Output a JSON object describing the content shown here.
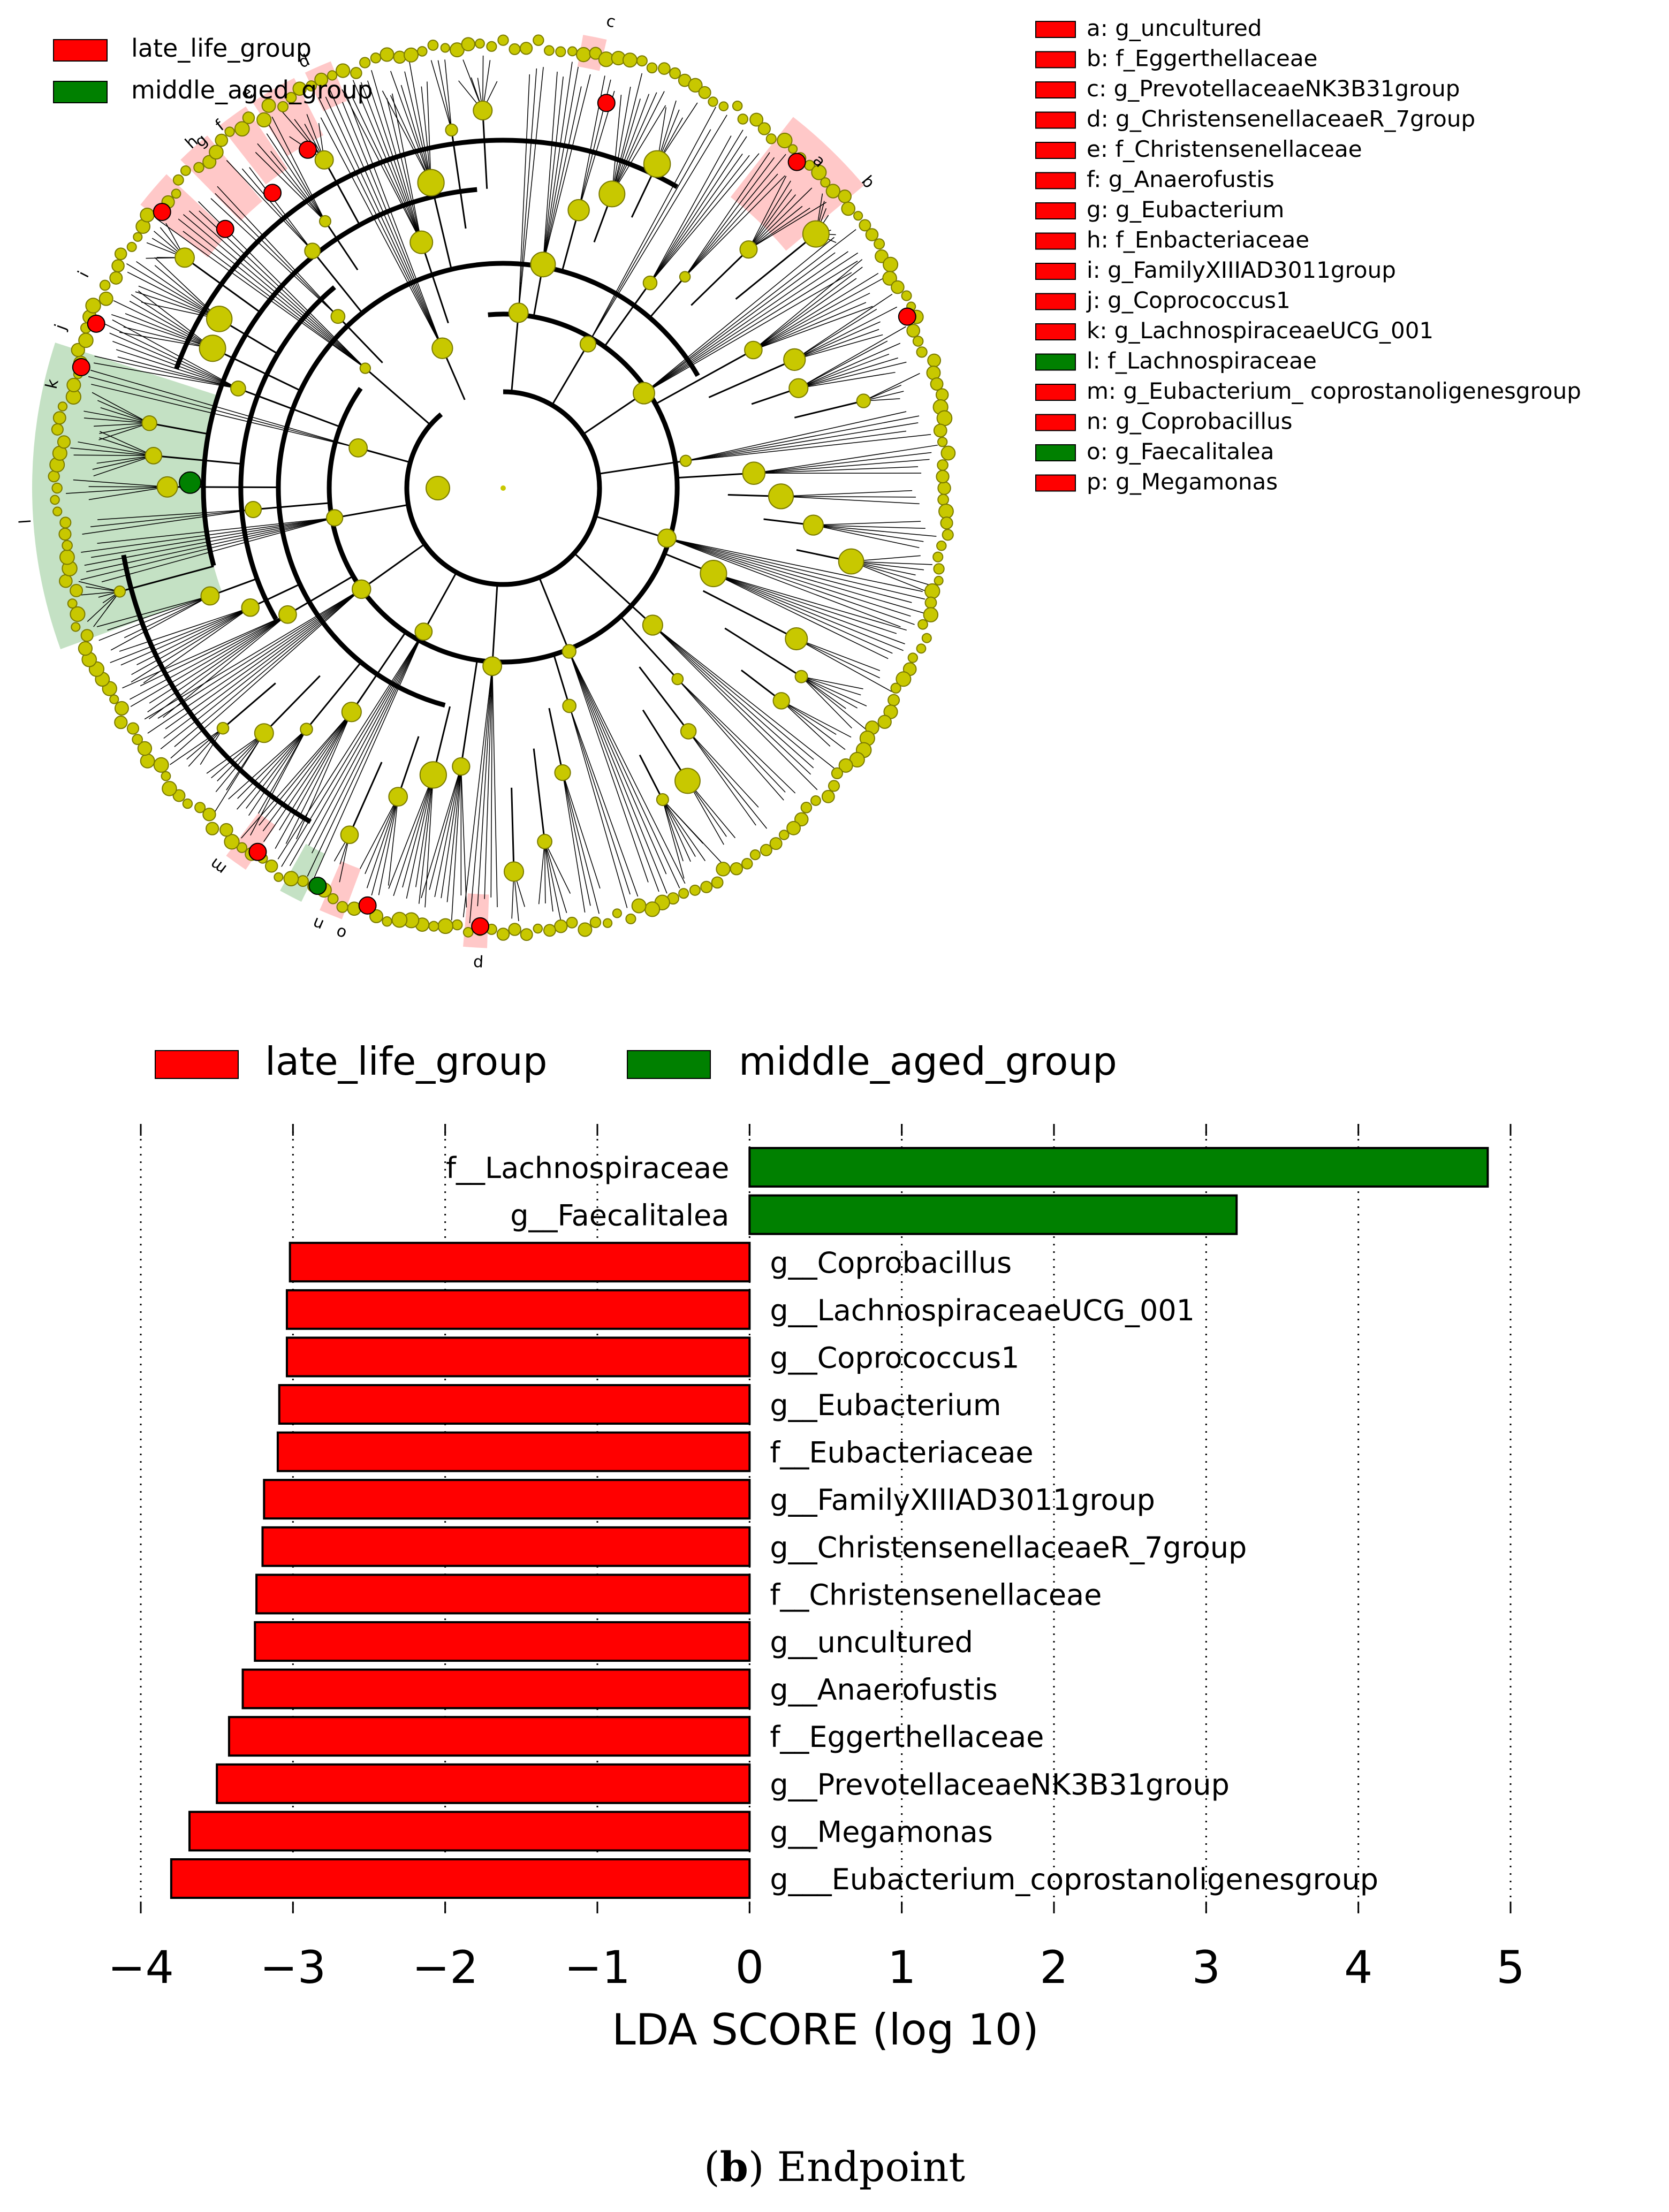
{
  "cladogram": {
    "legend": [
      {
        "label": "late_life_group",
        "color": "#ff0000"
      },
      {
        "label": "middle_aged_group",
        "color": "#008000"
      }
    ],
    "key": [
      {
        "label": "a: g_uncultured",
        "group": "late"
      },
      {
        "label": "b: f_Eggerthellaceae",
        "group": "late"
      },
      {
        "label": "c: g_PrevotellaceaeNK3B31group",
        "group": "late"
      },
      {
        "label": "d: g_ChristensenellaceaeR_7group",
        "group": "late"
      },
      {
        "label": "e: f_Christensenellaceae",
        "group": "late"
      },
      {
        "label": "f: g_Anaerofustis",
        "group": "late"
      },
      {
        "label": "g: g_Eubacterium",
        "group": "late"
      },
      {
        "label": "h: f_Enbacteriaceae",
        "group": "late"
      },
      {
        "label": "i: g_FamilyXIIIAD3011group",
        "group": "late"
      },
      {
        "label": "j: g_Coprococcus1",
        "group": "late"
      },
      {
        "label": "k: g_LachnospiraceaeUCG_001",
        "group": "late"
      },
      {
        "label": "l: f_Lachnospiraceae",
        "group": "middle"
      },
      {
        "label": "m: g_Eubacterium_ coprostanoligenesgroup",
        "group": "late"
      },
      {
        "label": "n: g_Coprobacillus",
        "group": "late"
      },
      {
        "label": "o: g_Faecalitalea",
        "group": "middle"
      },
      {
        "label": "p: g_Megamonas",
        "group": "late"
      }
    ],
    "sector_letters": [
      "a",
      "b",
      "c",
      "d",
      "e",
      "f",
      "g",
      "h",
      "i",
      "j",
      "k",
      "l",
      "m",
      "n",
      "o",
      "p"
    ]
  },
  "chart_data": {
    "type": "bar",
    "orientation": "horizontal",
    "xlabel": "LDA SCORE (log 10)",
    "xlim": [
      -4,
      5
    ],
    "xticks": [
      -4,
      -3,
      -2,
      -1,
      0,
      1,
      2,
      3,
      4,
      5
    ],
    "xtick_labels": [
      "−4",
      "−3",
      "−2",
      "−1",
      "0",
      "1",
      "2",
      "3",
      "4",
      "5"
    ],
    "grid": "vertical dotted",
    "legend": [
      {
        "label": "late_life_group",
        "color": "#ff0000"
      },
      {
        "label": "middle_aged_group",
        "color": "#008000"
      }
    ],
    "bars": [
      {
        "label": "f__Lachnospiraceae",
        "value": 4.85,
        "group": "middle"
      },
      {
        "label": "g__Faecalitalea",
        "value": 3.2,
        "group": "middle"
      },
      {
        "label": "g__Coprobacillus",
        "value": -3.02,
        "group": "late"
      },
      {
        "label": "g__LachnospiraceaeUCG_001",
        "value": -3.04,
        "group": "late"
      },
      {
        "label": "g__Coprococcus1",
        "value": -3.04,
        "group": "late"
      },
      {
        "label": "g__Eubacterium",
        "value": -3.09,
        "group": "late"
      },
      {
        "label": "f__Eubacteriaceae",
        "value": -3.1,
        "group": "late"
      },
      {
        "label": "g__FamilyXIIIAD3011group",
        "value": -3.19,
        "group": "late"
      },
      {
        "label": "g__ChristensenellaceaeR_7group",
        "value": -3.2,
        "group": "late"
      },
      {
        "label": "f__Christensenellaceae",
        "value": -3.24,
        "group": "late"
      },
      {
        "label": "g__uncultured",
        "value": -3.25,
        "group": "late"
      },
      {
        "label": "g__Anaerofustis",
        "value": -3.33,
        "group": "late"
      },
      {
        "label": "f__Eggerthellaceae",
        "value": -3.42,
        "group": "late"
      },
      {
        "label": "g__PrevotellaceaeNK3B31group",
        "value": -3.5,
        "group": "late"
      },
      {
        "label": "g__Megamonas",
        "value": -3.68,
        "group": "late"
      },
      {
        "label": "g___Eubacterium_coprostanoligenesgroup",
        "value": -3.8,
        "group": "late"
      }
    ]
  },
  "caption": {
    "letter": "b",
    "text": ") Endpoint",
    "open": "("
  }
}
